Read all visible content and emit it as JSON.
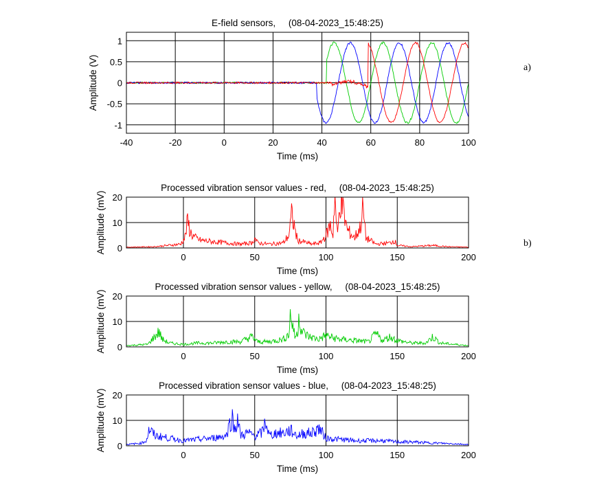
{
  "panel_labels": [
    "a)",
    "b)"
  ],
  "chart_data": [
    {
      "type": "line",
      "title": "E-field sensors,     (08-04-2023_15:48:25)",
      "xlabel": "Time (ms)",
      "ylabel": "Amplitude (V)",
      "xlim": [
        -40,
        100
      ],
      "ylim": [
        -1.2,
        1.2
      ],
      "xticks": [
        "-40",
        "-20",
        "0",
        "20",
        "40",
        "60",
        "80",
        "100"
      ],
      "yticks": [
        "-1",
        "-0.5",
        "0",
        "0.5",
        "1"
      ],
      "grid": true,
      "signal_period_ms": 20,
      "series": [
        {
          "color": "#00cc00",
          "x": [
            -40,
            43,
            45,
            50,
            55,
            60,
            65,
            70,
            75,
            80,
            85,
            90,
            95,
            100
          ],
          "y": [
            0,
            0,
            0.93,
            0.3,
            -0.7,
            -0.9,
            0.0,
            0.9,
            0.3,
            -0.7,
            -0.9,
            0.0,
            0.9,
            0.3
          ]
        },
        {
          "color": "#0000ff",
          "x": [
            -40,
            38,
            40,
            45,
            50,
            55,
            60,
            65,
            70,
            75,
            80,
            85,
            90,
            95,
            100
          ],
          "y": [
            0,
            0,
            -0.5,
            -0.6,
            0.95,
            -0.3,
            -0.7,
            0.9,
            0.3,
            -0.7,
            -0.9,
            0.0,
            0.9,
            0.3,
            -0.7
          ]
        },
        {
          "color": "#ff0000",
          "x": [
            -40,
            43,
            50,
            55,
            59,
            60,
            65,
            70,
            75,
            80,
            85,
            90,
            95,
            100
          ],
          "y": [
            0,
            0,
            -0.05,
            0.05,
            0,
            1.0,
            0.2,
            -0.8,
            -0.8,
            0.2,
            1.0,
            0.5,
            -0.6,
            0.9
          ]
        }
      ]
    },
    {
      "type": "line",
      "title": "Processed vibration sensor values - red,     (08-04-2023_15:48:25)",
      "xlabel": "Time (ms)",
      "ylabel": "Amplitude (mV)",
      "xlim": [
        -40,
        200
      ],
      "ylim": [
        0,
        20
      ],
      "xticks": [
        "0",
        "50",
        "100",
        "150",
        "200"
      ],
      "yticks": [
        "0",
        "10",
        "20"
      ],
      "grid": true,
      "series": [
        {
          "color": "#ff0000",
          "x": [
            -40,
            -20,
            -2,
            1,
            3,
            5,
            8,
            12,
            20,
            30,
            40,
            48,
            50,
            52,
            60,
            70,
            74,
            76,
            80,
            90,
            96,
            100,
            103,
            105,
            106,
            108,
            110,
            115,
            120,
            124,
            126,
            128,
            135,
            145,
            148,
            150,
            160,
            175,
            185,
            200
          ],
          "y": [
            0.3,
            0.5,
            1.5,
            4,
            10.5,
            6,
            4,
            3,
            2.5,
            2,
            1.5,
            2,
            4,
            2,
            1.5,
            2,
            5,
            13,
            3,
            1.5,
            2,
            5,
            9,
            5,
            22,
            4,
            20,
            7,
            4,
            8,
            15.5,
            4,
            1.5,
            2,
            3,
            1,
            0.5,
            1,
            0.5,
            0.3
          ]
        }
      ]
    },
    {
      "type": "line",
      "title": "Processed vibration sensor values - yellow,     (08-04-2023_15:48:25)",
      "xlabel": "Time (ms)",
      "ylabel": "Amplitude (mV)",
      "xlim": [
        -40,
        200
      ],
      "ylim": [
        0,
        20
      ],
      "xticks": [
        "0",
        "50",
        "100",
        "150",
        "200"
      ],
      "yticks": [
        "0",
        "10",
        "20"
      ],
      "grid": true,
      "series": [
        {
          "color": "#00cc00",
          "x": [
            -40,
            -25,
            -17,
            -15,
            -10,
            0,
            10,
            20,
            30,
            40,
            48,
            52,
            60,
            70,
            74,
            75,
            77,
            78,
            80,
            81,
            83,
            88,
            95,
            100,
            105,
            110,
            120,
            130,
            135,
            140,
            145,
            150,
            160,
            170,
            175,
            180,
            190,
            200
          ],
          "y": [
            0.5,
            1,
            6,
            3,
            1.5,
            1,
            1.5,
            1.5,
            2,
            2,
            4,
            2,
            2,
            3,
            5,
            12.5,
            8,
            4,
            5,
            13,
            6,
            4,
            3,
            4.5,
            3.5,
            3,
            2.5,
            2,
            5,
            2.5,
            4,
            2.5,
            1.5,
            1.5,
            4,
            1.5,
            1,
            0.5
          ]
        }
      ]
    },
    {
      "type": "line",
      "title": "Processed vibration sensor values - blue,     (08-04-2023_15:48:25)",
      "xlabel": "Time (ms)",
      "ylabel": "Amplitude (mV)",
      "xlim": [
        -40,
        200
      ],
      "ylim": [
        0,
        20
      ],
      "xticks": [
        "0",
        "50",
        "100",
        "150",
        "200"
      ],
      "yticks": [
        "0",
        "10",
        "20"
      ],
      "grid": true,
      "series": [
        {
          "color": "#0000ff",
          "x": [
            -40,
            -30,
            -26,
            -24,
            -20,
            -10,
            0,
            10,
            20,
            30,
            34,
            36,
            38,
            40,
            45,
            50,
            55,
            58,
            60,
            65,
            70,
            75,
            80,
            85,
            90,
            95,
            100,
            110,
            120,
            130,
            140,
            150,
            160,
            170,
            180,
            190,
            200
          ],
          "y": [
            0.5,
            1,
            2,
            6.5,
            4,
            3,
            2,
            2.5,
            3,
            4,
            11.5,
            6,
            11,
            4,
            5,
            4,
            5,
            10,
            4,
            5,
            5,
            6,
            4,
            5,
            5,
            7,
            3,
            2.5,
            2,
            2,
            2,
            1.5,
            1.5,
            1.2,
            1,
            0.8,
            0.5
          ]
        }
      ]
    }
  ]
}
